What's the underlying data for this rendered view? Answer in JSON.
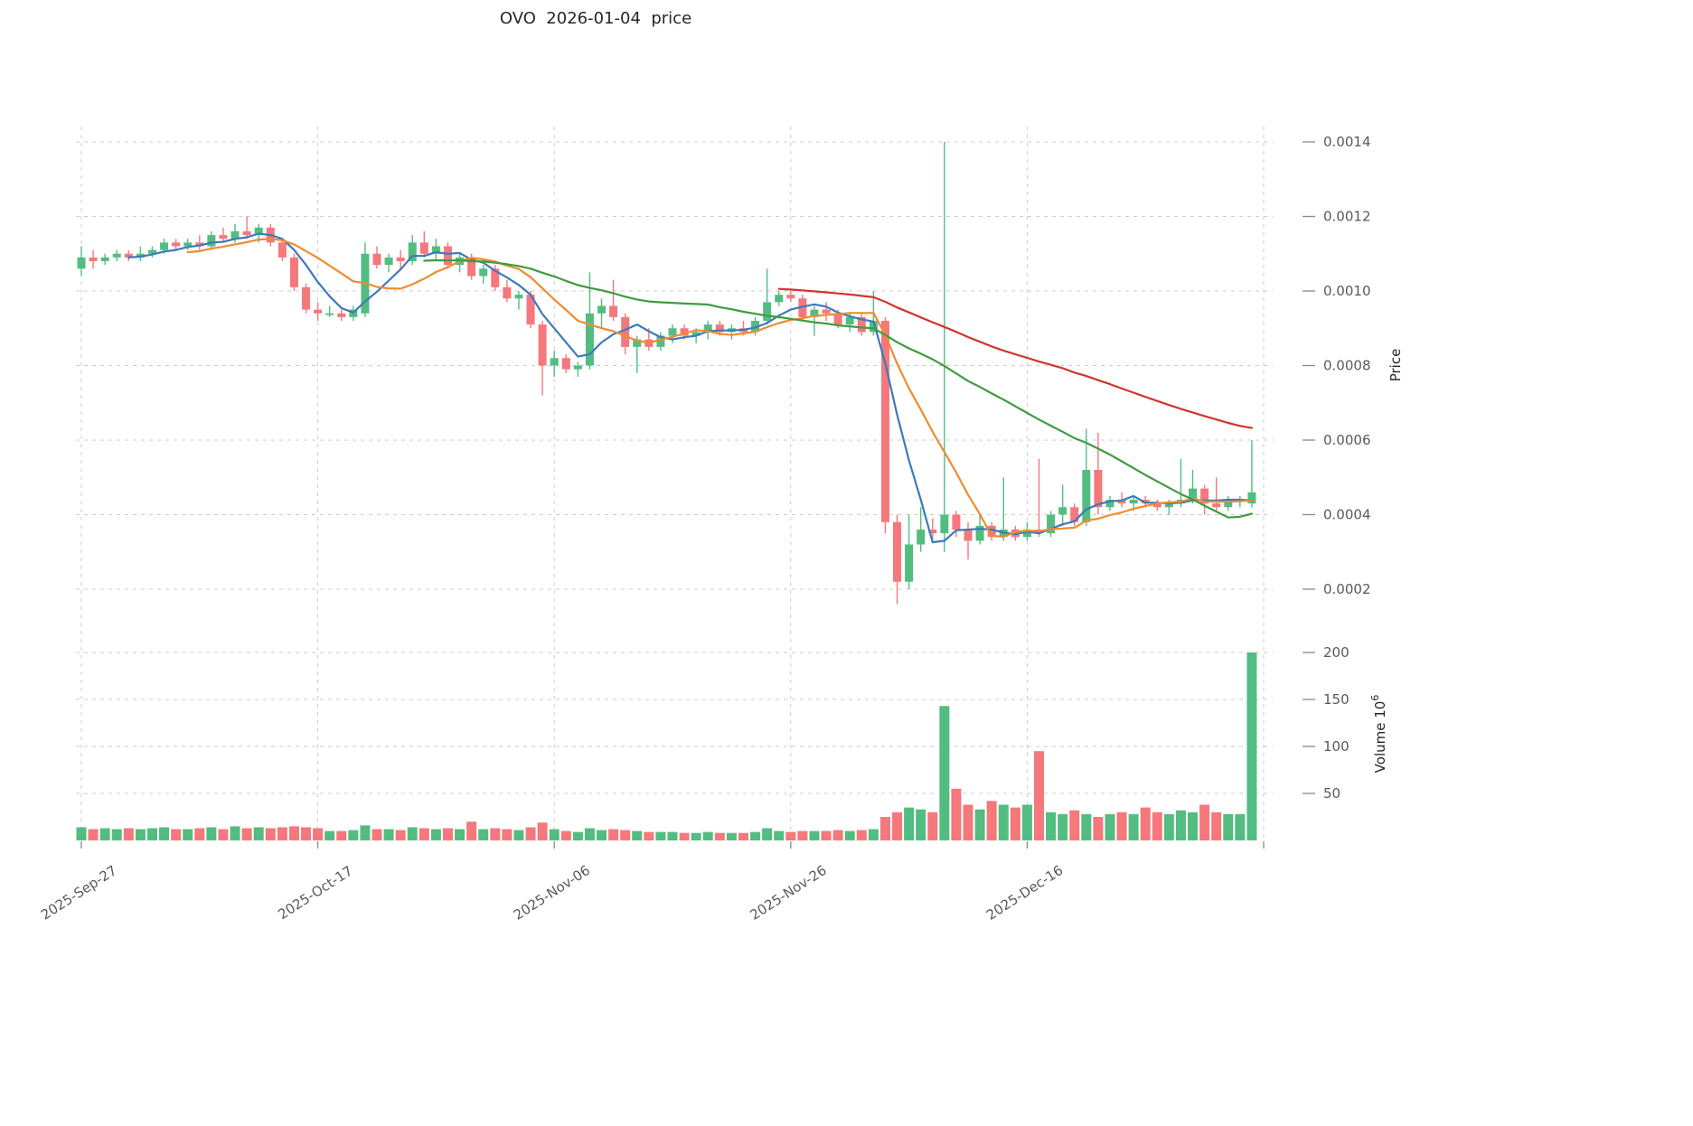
{
  "title": "OVO  2026-01-04  price",
  "axes": {
    "price_axis_label": "Price",
    "volume_axis_label": "Volume",
    "volume_axis_unit_base": "10",
    "volume_axis_unit_exponent": "6",
    "price_ticks": [
      {
        "label": "0.0002",
        "value": 0.0002
      },
      {
        "label": "0.0004",
        "value": 0.0004
      },
      {
        "label": "0.0006",
        "value": 0.0006
      },
      {
        "label": "0.0008",
        "value": 0.0008
      },
      {
        "label": "0.0010",
        "value": 0.001
      },
      {
        "label": "0.0012",
        "value": 0.0012
      },
      {
        "label": "0.0014",
        "value": 0.0014
      }
    ],
    "volume_ticks": [
      {
        "label": "50",
        "value": 50
      },
      {
        "label": "100",
        "value": 100
      },
      {
        "label": "150",
        "value": 150
      },
      {
        "label": "200",
        "value": 200
      }
    ],
    "x_ticks": [
      {
        "label": "2025-Sep-27",
        "index": 0
      },
      {
        "label": "2025-Oct-17",
        "index": 20
      },
      {
        "label": "2025-Nov-06",
        "index": 40
      },
      {
        "label": "2025-Nov-26",
        "index": 60
      },
      {
        "label": "2025-Dec-16",
        "index": 80
      },
      {
        "label": "",
        "index": 100
      }
    ]
  },
  "chart_data": {
    "type": "candlestick",
    "symbol": "OVO",
    "title": "OVO  2026-01-04  price",
    "grid": true,
    "price_ylim": [
      0.00012,
      0.00144
    ],
    "volume_ylim": [
      0,
      210
    ],
    "volume_unit": 1000000,
    "dates": [
      "2025-09-27",
      "2025-09-28",
      "2025-09-29",
      "2025-09-30",
      "2025-10-01",
      "2025-10-02",
      "2025-10-03",
      "2025-10-04",
      "2025-10-05",
      "2025-10-06",
      "2025-10-07",
      "2025-10-08",
      "2025-10-09",
      "2025-10-10",
      "2025-10-11",
      "2025-10-12",
      "2025-10-13",
      "2025-10-14",
      "2025-10-15",
      "2025-10-16",
      "2025-10-17",
      "2025-10-18",
      "2025-10-19",
      "2025-10-20",
      "2025-10-21",
      "2025-10-22",
      "2025-10-23",
      "2025-10-24",
      "2025-10-25",
      "2025-10-26",
      "2025-10-27",
      "2025-10-28",
      "2025-10-29",
      "2025-10-30",
      "2025-10-31",
      "2025-11-01",
      "2025-11-02",
      "2025-11-03",
      "2025-11-04",
      "2025-11-05",
      "2025-11-06",
      "2025-11-07",
      "2025-11-08",
      "2025-11-09",
      "2025-11-10",
      "2025-11-11",
      "2025-11-12",
      "2025-11-13",
      "2025-11-14",
      "2025-11-15",
      "2025-11-16",
      "2025-11-17",
      "2025-11-18",
      "2025-11-19",
      "2025-11-20",
      "2025-11-21",
      "2025-11-22",
      "2025-11-23",
      "2025-11-24",
      "2025-11-25",
      "2025-11-26",
      "2025-11-27",
      "2025-11-28",
      "2025-11-29",
      "2025-11-30",
      "2025-12-01",
      "2025-12-02",
      "2025-12-03",
      "2025-12-04",
      "2025-12-05",
      "2025-12-06",
      "2025-12-07",
      "2025-12-08",
      "2025-12-09",
      "2025-12-10",
      "2025-12-11",
      "2025-12-12",
      "2025-12-13",
      "2025-12-14",
      "2025-12-15",
      "2025-12-16",
      "2025-12-17",
      "2025-12-18",
      "2025-12-19",
      "2025-12-20",
      "2025-12-21",
      "2025-12-22",
      "2025-12-23",
      "2025-12-24",
      "2025-12-25",
      "2025-12-26",
      "2025-12-27",
      "2025-12-28",
      "2025-12-29",
      "2025-12-30",
      "2025-12-31",
      "2026-01-01",
      "2026-01-02",
      "2026-01-03",
      "2026-01-04"
    ],
    "ohlc": [
      [
        0.00106,
        0.00112,
        0.00104,
        0.00109
      ],
      [
        0.00109,
        0.00111,
        0.00106,
        0.00108
      ],
      [
        0.00108,
        0.0011,
        0.00107,
        0.00109
      ],
      [
        0.00109,
        0.00111,
        0.00108,
        0.0011
      ],
      [
        0.0011,
        0.00111,
        0.00108,
        0.00109
      ],
      [
        0.00109,
        0.00112,
        0.00108,
        0.0011
      ],
      [
        0.0011,
        0.00112,
        0.00109,
        0.00111
      ],
      [
        0.00111,
        0.00114,
        0.0011,
        0.00113
      ],
      [
        0.00113,
        0.00114,
        0.00111,
        0.00112
      ],
      [
        0.00112,
        0.00114,
        0.00111,
        0.00113
      ],
      [
        0.00113,
        0.00115,
        0.00111,
        0.00112
      ],
      [
        0.00112,
        0.00116,
        0.00111,
        0.00115
      ],
      [
        0.00115,
        0.00117,
        0.00113,
        0.00114
      ],
      [
        0.00114,
        0.00118,
        0.00113,
        0.00116
      ],
      [
        0.00116,
        0.0012,
        0.00114,
        0.00115
      ],
      [
        0.00115,
        0.00118,
        0.00113,
        0.00117
      ],
      [
        0.00117,
        0.00118,
        0.00112,
        0.00113
      ],
      [
        0.00113,
        0.00114,
        0.00108,
        0.00109
      ],
      [
        0.00109,
        0.0011,
        0.001,
        0.00101
      ],
      [
        0.00101,
        0.00102,
        0.00094,
        0.00095
      ],
      [
        0.00095,
        0.00097,
        0.00092,
        0.00094
      ],
      [
        0.00094,
        0.00096,
        0.00093,
        0.00094
      ],
      [
        0.00094,
        0.00095,
        0.00092,
        0.00093
      ],
      [
        0.00093,
        0.00096,
        0.00092,
        0.00095
      ],
      [
        0.00094,
        0.00113,
        0.00093,
        0.0011
      ],
      [
        0.0011,
        0.00112,
        0.00106,
        0.00107
      ],
      [
        0.00107,
        0.0011,
        0.00105,
        0.00109
      ],
      [
        0.00109,
        0.00111,
        0.00106,
        0.00108
      ],
      [
        0.00108,
        0.00115,
        0.00107,
        0.00113
      ],
      [
        0.00113,
        0.00116,
        0.00109,
        0.0011
      ],
      [
        0.0011,
        0.00114,
        0.00108,
        0.00112
      ],
      [
        0.00112,
        0.00113,
        0.00106,
        0.00107
      ],
      [
        0.00107,
        0.0011,
        0.00105,
        0.00109
      ],
      [
        0.00109,
        0.0011,
        0.00103,
        0.00104
      ],
      [
        0.00104,
        0.00107,
        0.00102,
        0.00106
      ],
      [
        0.00106,
        0.00107,
        0.001,
        0.00101
      ],
      [
        0.00101,
        0.00103,
        0.00097,
        0.00098
      ],
      [
        0.00098,
        0.001,
        0.00095,
        0.00099
      ],
      [
        0.00099,
        0.001,
        0.0009,
        0.00091
      ],
      [
        0.00091,
        0.00092,
        0.00072,
        0.0008
      ],
      [
        0.0008,
        0.00084,
        0.00077,
        0.00082
      ],
      [
        0.00082,
        0.00083,
        0.00078,
        0.00079
      ],
      [
        0.00079,
        0.00081,
        0.00077,
        0.0008
      ],
      [
        0.0008,
        0.00105,
        0.00079,
        0.00094
      ],
      [
        0.00094,
        0.00098,
        0.0009,
        0.00096
      ],
      [
        0.00096,
        0.00103,
        0.00092,
        0.00093
      ],
      [
        0.00093,
        0.00094,
        0.00083,
        0.00085
      ],
      [
        0.00085,
        0.00088,
        0.00078,
        0.00087
      ],
      [
        0.00087,
        0.0009,
        0.00084,
        0.00085
      ],
      [
        0.00085,
        0.00089,
        0.00084,
        0.00088
      ],
      [
        0.00088,
        0.00091,
        0.00086,
        0.0009
      ],
      [
        0.0009,
        0.00091,
        0.00087,
        0.00088
      ],
      [
        0.00088,
        0.0009,
        0.00086,
        0.00089
      ],
      [
        0.00089,
        0.00092,
        0.00087,
        0.00091
      ],
      [
        0.00091,
        0.00092,
        0.00088,
        0.00089
      ],
      [
        0.00089,
        0.00091,
        0.00087,
        0.0009
      ],
      [
        0.0009,
        0.00092,
        0.00088,
        0.00089
      ],
      [
        0.00089,
        0.00093,
        0.00088,
        0.00092
      ],
      [
        0.00092,
        0.00106,
        0.00091,
        0.00097
      ],
      [
        0.00097,
        0.001,
        0.00096,
        0.00099
      ],
      [
        0.00099,
        0.001,
        0.00097,
        0.00098
      ],
      [
        0.00098,
        0.00099,
        0.00092,
        0.00093
      ],
      [
        0.00093,
        0.00096,
        0.00088,
        0.00095
      ],
      [
        0.00095,
        0.00097,
        0.00092,
        0.00094
      ],
      [
        0.00094,
        0.00095,
        0.0009,
        0.00091
      ],
      [
        0.00091,
        0.00094,
        0.00089,
        0.00093
      ],
      [
        0.00093,
        0.00094,
        0.00088,
        0.00089
      ],
      [
        0.00089,
        0.001,
        0.00088,
        0.00092
      ],
      [
        0.00092,
        0.00093,
        0.00035,
        0.00038
      ],
      [
        0.00038,
        0.0004,
        0.00016,
        0.00022
      ],
      [
        0.00022,
        0.0004,
        0.0002,
        0.00032
      ],
      [
        0.00032,
        0.00042,
        0.0003,
        0.00036
      ],
      [
        0.00036,
        0.00039,
        0.00033,
        0.00035
      ],
      [
        0.00035,
        0.0014,
        0.0003,
        0.0004
      ],
      [
        0.0004,
        0.00041,
        0.00034,
        0.00036
      ],
      [
        0.00036,
        0.00038,
        0.00028,
        0.00033
      ],
      [
        0.00033,
        0.0004,
        0.00032,
        0.00037
      ],
      [
        0.00037,
        0.00038,
        0.00033,
        0.00034
      ],
      [
        0.00034,
        0.0005,
        0.00033,
        0.00036
      ],
      [
        0.00036,
        0.00037,
        0.00033,
        0.00034
      ],
      [
        0.00034,
        0.00038,
        0.00033,
        0.00036
      ],
      [
        0.00036,
        0.00055,
        0.00034,
        0.00035
      ],
      [
        0.00035,
        0.00041,
        0.00034,
        0.0004
      ],
      [
        0.0004,
        0.00048,
        0.00037,
        0.00042
      ],
      [
        0.00042,
        0.00043,
        0.00037,
        0.00038
      ],
      [
        0.00038,
        0.00063,
        0.00037,
        0.00052
      ],
      [
        0.00052,
        0.00062,
        0.0004,
        0.00042
      ],
      [
        0.00042,
        0.00045,
        0.00041,
        0.00044
      ],
      [
        0.00044,
        0.00046,
        0.00042,
        0.00043
      ],
      [
        0.00043,
        0.00045,
        0.00041,
        0.00044
      ],
      [
        0.00044,
        0.00045,
        0.00042,
        0.00043
      ],
      [
        0.00043,
        0.00044,
        0.00041,
        0.00042
      ],
      [
        0.00042,
        0.00044,
        0.0004,
        0.00043
      ],
      [
        0.00043,
        0.00055,
        0.00042,
        0.00044
      ],
      [
        0.00044,
        0.00052,
        0.00043,
        0.00047
      ],
      [
        0.00047,
        0.00048,
        0.0004,
        0.00043
      ],
      [
        0.00043,
        0.0005,
        0.00041,
        0.00042
      ],
      [
        0.00042,
        0.00045,
        0.00041,
        0.00044
      ],
      [
        0.00044,
        0.00045,
        0.00042,
        0.00044
      ],
      [
        0.00043,
        0.0006,
        0.00042,
        0.00046
      ]
    ],
    "volume": [
      14,
      12,
      13,
      12,
      13,
      12,
      13,
      14,
      12,
      12,
      13,
      14,
      12,
      15,
      13,
      14,
      13,
      14,
      15,
      14,
      13,
      10,
      10,
      11,
      16,
      12,
      12,
      11,
      14,
      13,
      12,
      13,
      12,
      20,
      12,
      13,
      12,
      11,
      14,
      19,
      12,
      10,
      9,
      13,
      11,
      12,
      11,
      10,
      9,
      9,
      9,
      8,
      8,
      9,
      8,
      8,
      8,
      9,
      13,
      10,
      9,
      10,
      10,
      10,
      11,
      10,
      11,
      12,
      25,
      30,
      35,
      33,
      30,
      143,
      55,
      38,
      33,
      42,
      38,
      35,
      38,
      95,
      30,
      28,
      32,
      28,
      25,
      28,
      30,
      28,
      35,
      30,
      28,
      32,
      30,
      38,
      30,
      28,
      28,
      200
    ],
    "moving_averages": [
      {
        "name": "sma-5",
        "window": 5,
        "color": "#3d7ab8"
      },
      {
        "name": "sma-10",
        "window": 10,
        "color": "#ef8c2f"
      },
      {
        "name": "sma-30",
        "window": 30,
        "color": "#3f9b40"
      },
      {
        "name": "sma-60",
        "window": 60,
        "color": "#d23430"
      }
    ],
    "style": {
      "up_color": "#53bd81",
      "down_color": "#f4787c",
      "grid_color": "#cccccc",
      "tick_label_color": "#595959",
      "axis_label_color": "#262626",
      "title_color": "#262626",
      "background": "#ffffff"
    }
  }
}
